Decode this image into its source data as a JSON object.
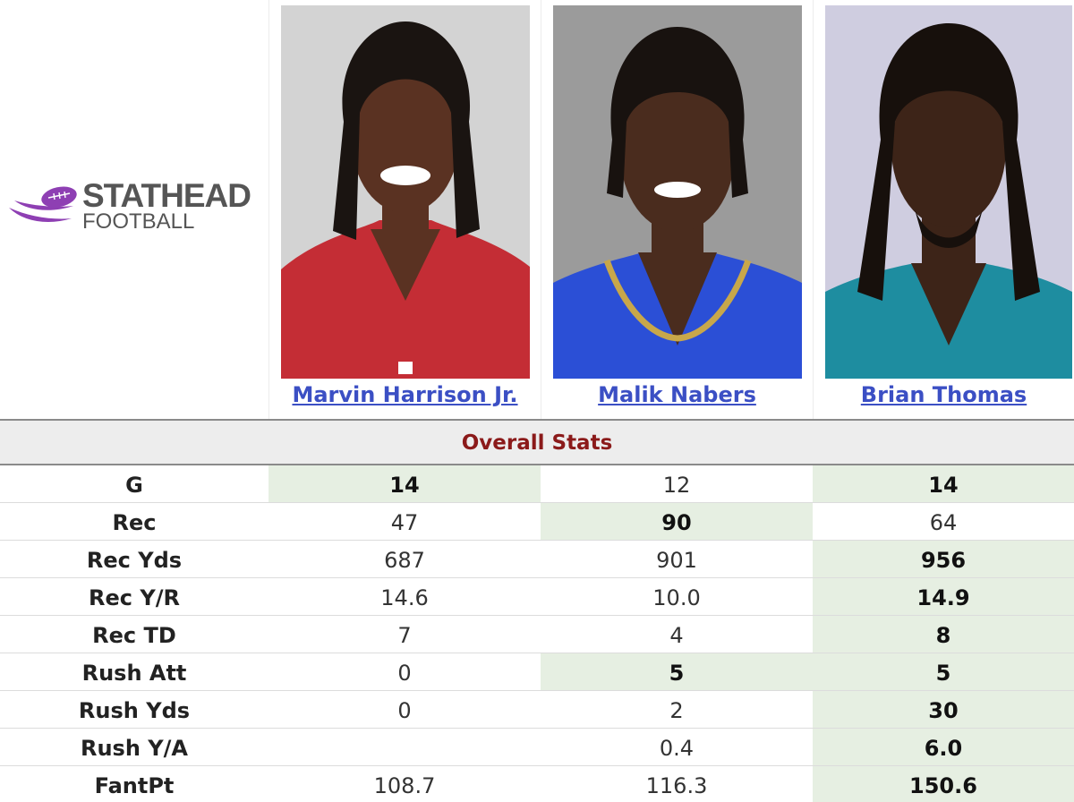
{
  "logo": {
    "line1": "STATHEAD",
    "line2": "FOOTBALL",
    "brand_color": "#8e3fb3"
  },
  "players": [
    {
      "name": "Marvin Harrison Jr.",
      "jersey_color": "#c42d35",
      "bg_color": "#d3d3d3"
    },
    {
      "name": "Malik Nabers",
      "jersey_color": "#2b4fd6",
      "bg_color": "#9b9b9b"
    },
    {
      "name": "Brian Thomas",
      "jersey_color": "#1e8da0",
      "bg_color": "#cfcde0"
    }
  ],
  "section_title": "Overall Stats",
  "highlight_color": "#e6efe2",
  "stats": [
    {
      "label": "G",
      "values": [
        "14",
        "12",
        "14"
      ],
      "best": [
        true,
        false,
        true
      ]
    },
    {
      "label": "Rec",
      "values": [
        "47",
        "90",
        "64"
      ],
      "best": [
        false,
        true,
        false
      ]
    },
    {
      "label": "Rec Yds",
      "values": [
        "687",
        "901",
        "956"
      ],
      "best": [
        false,
        false,
        true
      ]
    },
    {
      "label": "Rec Y/R",
      "values": [
        "14.6",
        "10.0",
        "14.9"
      ],
      "best": [
        false,
        false,
        true
      ]
    },
    {
      "label": "Rec TD",
      "values": [
        "7",
        "4",
        "8"
      ],
      "best": [
        false,
        false,
        true
      ]
    },
    {
      "label": "Rush Att",
      "values": [
        "0",
        "5",
        "5"
      ],
      "best": [
        false,
        true,
        true
      ]
    },
    {
      "label": "Rush Yds",
      "values": [
        "0",
        "2",
        "30"
      ],
      "best": [
        false,
        false,
        true
      ]
    },
    {
      "label": "Rush Y/A",
      "values": [
        "",
        "0.4",
        "6.0"
      ],
      "best": [
        false,
        false,
        true
      ]
    },
    {
      "label": "FantPt",
      "values": [
        "108.7",
        "116.3",
        "150.6"
      ],
      "best": [
        false,
        false,
        true
      ]
    }
  ]
}
